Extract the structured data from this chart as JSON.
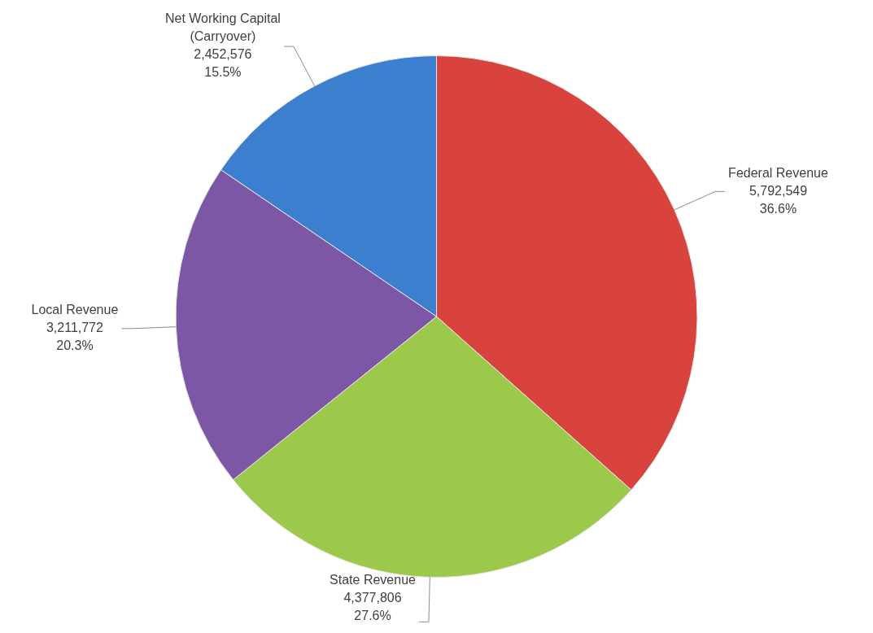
{
  "chart_data": {
    "type": "pie",
    "categories": [
      "Federal Revenue",
      "State Revenue",
      "Local Revenue",
      "Net Working Capital (Carryover)"
    ],
    "values": [
      5792549,
      4377806,
      3211772,
      2452576
    ],
    "colors": [
      "#d9433d",
      "#9cc84b",
      "#7c57a6",
      "#3c7fcf"
    ],
    "value_labels": [
      "5,792,549\n36.6%",
      "4,377,806\n27.6%",
      "3,211,772\n20.3%",
      "2,452,576\n15.5%"
    ]
  }
}
